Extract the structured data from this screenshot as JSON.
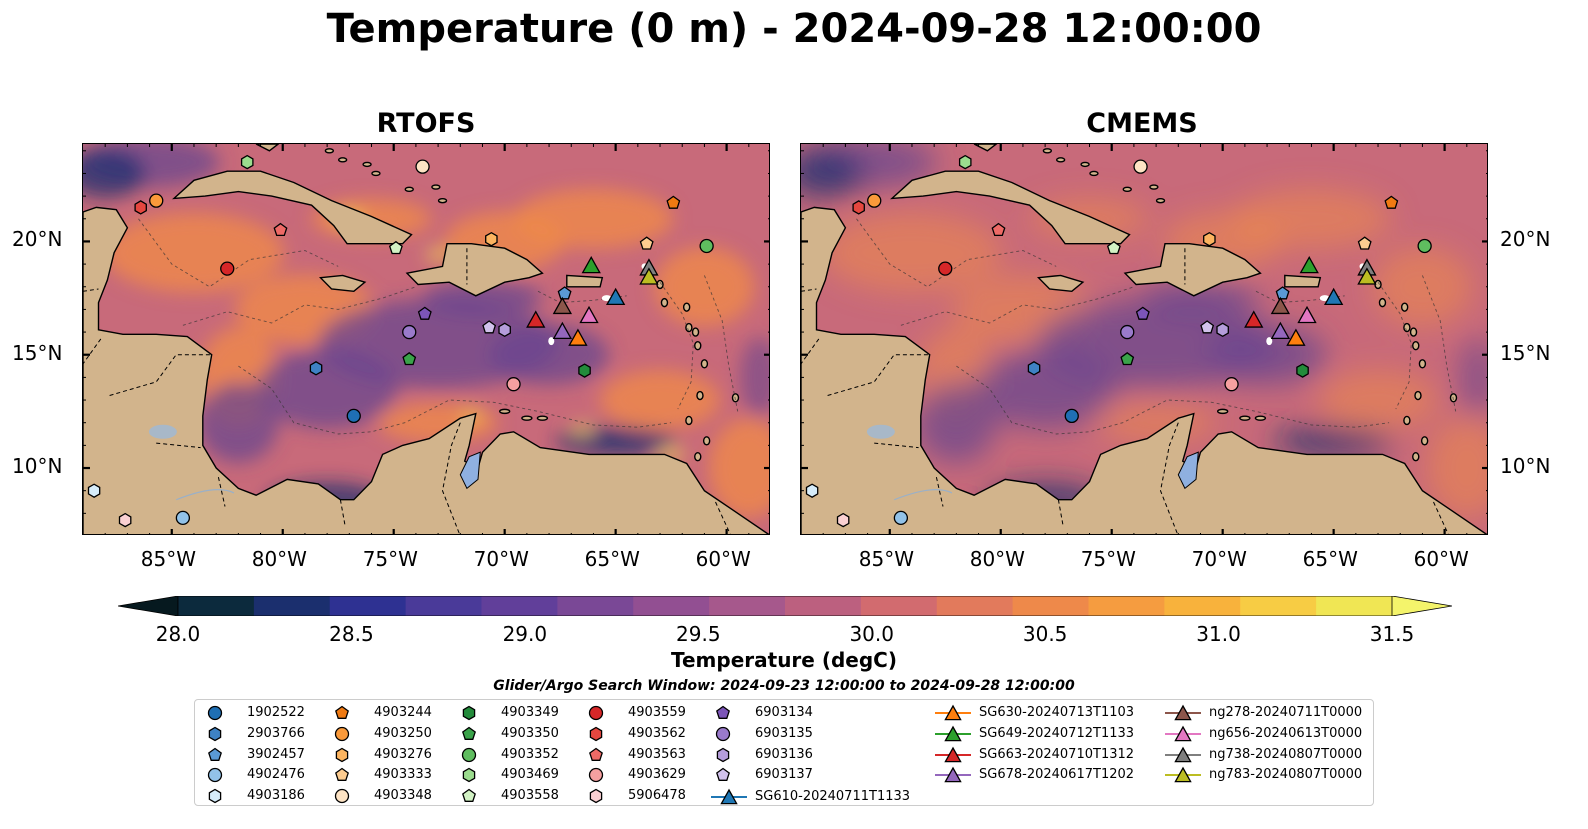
{
  "figure": {
    "title": "Temperature (0 m) - 2024-09-28 12:00:00",
    "search_window": "Glider/Argo Search Window: 2024-09-23 12:00:00 to 2024-09-28 12:00:00"
  },
  "panels": [
    {
      "title": "RTOFS"
    },
    {
      "title": "CMEMS"
    }
  ],
  "axes": {
    "x_ticks": [
      "85°W",
      "80°W",
      "75°W",
      "70°W",
      "65°W",
      "60°W"
    ],
    "y_ticks": [
      "20°N",
      "15°N",
      "10°N"
    ]
  },
  "colorbar": {
    "label": "Temperature (degC)",
    "ticks": [
      "28.0",
      "28.5",
      "29.0",
      "29.5",
      "30.0",
      "30.5",
      "31.0",
      "31.5"
    ],
    "min": 28.0,
    "max": 31.5,
    "colors": [
      "#0c2a3d",
      "#1b2f6e",
      "#2e3192",
      "#4a3a99",
      "#613f9a",
      "#7a4896",
      "#924f92",
      "#a6588c",
      "#bc607f",
      "#d26b6f",
      "#e27a5c",
      "#ee894a",
      "#f59c40",
      "#f8b23c",
      "#f7cc44",
      "#f0e654"
    ],
    "over_color": "#f4f46b",
    "under_color": "#06191f"
  },
  "map_colors": {
    "land": "#d2b48c",
    "lake": "#8fb0e0",
    "ocean_base": "#c86a7a",
    "warm": "#ef8a4a",
    "cool": "#6a468f",
    "cold": "#1b2f6e"
  },
  "legend": {
    "argo": [
      {
        "label": "1902522",
        "color": "#1f6fb4",
        "shape": "circle"
      },
      {
        "label": "2903766",
        "color": "#3e82c4",
        "shape": "hexagon"
      },
      {
        "label": "3902457",
        "color": "#5a9ad6",
        "shape": "pentagon"
      },
      {
        "label": "4902476",
        "color": "#92c2e8",
        "shape": "circle"
      },
      {
        "label": "4903186",
        "color": "#d6ecfa",
        "shape": "hexagon"
      },
      {
        "label": "4903244",
        "color": "#f07a12",
        "shape": "pentagon"
      },
      {
        "label": "4903250",
        "color": "#fb9a3a",
        "shape": "circle"
      },
      {
        "label": "4903276",
        "color": "#fcb460",
        "shape": "hexagon"
      },
      {
        "label": "4903333",
        "color": "#fdcc90",
        "shape": "pentagon"
      },
      {
        "label": "4903348",
        "color": "#fde3c4",
        "shape": "circle"
      },
      {
        "label": "4903349",
        "color": "#238b3b",
        "shape": "hexagon"
      },
      {
        "label": "4903350",
        "color": "#3aa34a",
        "shape": "pentagon"
      },
      {
        "label": "4903352",
        "color": "#5fbd5f",
        "shape": "circle"
      },
      {
        "label": "4903469",
        "color": "#9bdc8e",
        "shape": "hexagon"
      },
      {
        "label": "4903558",
        "color": "#d2f2c4",
        "shape": "pentagon"
      },
      {
        "label": "4903559",
        "color": "#d62728",
        "shape": "circle"
      },
      {
        "label": "4903562",
        "color": "#e5473f",
        "shape": "hexagon"
      },
      {
        "label": "4903563",
        "color": "#ee6a66",
        "shape": "pentagon"
      },
      {
        "label": "4903629",
        "color": "#f5a0a0",
        "shape": "circle"
      },
      {
        "label": "5906478",
        "color": "#fad0d2",
        "shape": "hexagon"
      },
      {
        "label": "6903134",
        "color": "#7c55b8",
        "shape": "pentagon"
      },
      {
        "label": "6903135",
        "color": "#9a7acb",
        "shape": "circle"
      },
      {
        "label": "6903136",
        "color": "#b59ddb",
        "shape": "hexagon"
      },
      {
        "label": "6903137",
        "color": "#d2c2ec",
        "shape": "pentagon"
      }
    ],
    "gliders": [
      {
        "label": "SG610-20240711T1133",
        "color": "#1f77b4"
      },
      {
        "label": "SG630-20240713T1103",
        "color": "#ff7f0e"
      },
      {
        "label": "SG649-20240712T1133",
        "color": "#2ca02c"
      },
      {
        "label": "SG663-20240710T1312",
        "color": "#d62728"
      },
      {
        "label": "SG678-20240617T1202",
        "color": "#9467bd"
      },
      {
        "label": "ng278-20240711T0000",
        "color": "#8c564b"
      },
      {
        "label": "ng656-20240613T0000",
        "color": "#e377c2"
      },
      {
        "label": "ng738-20240807T0000",
        "color": "#7f7f7f"
      },
      {
        "label": "ng783-20240807T0000",
        "color": "#bcbd22"
      }
    ]
  },
  "markers": {
    "argo_positions": [
      {
        "id": "1902522",
        "lon": -76.8,
        "lat": 12.3
      },
      {
        "id": "2903766",
        "lon": -78.5,
        "lat": 14.4
      },
      {
        "id": "3902457",
        "lon": -67.3,
        "lat": 17.7
      },
      {
        "id": "4902476",
        "lon": -84.5,
        "lat": 7.8
      },
      {
        "id": "4903186",
        "lon": -88.5,
        "lat": 9.0
      },
      {
        "id": "4903244",
        "lon": -62.4,
        "lat": 21.7
      },
      {
        "id": "4903250",
        "lon": -85.7,
        "lat": 21.8
      },
      {
        "id": "4903276",
        "lon": -70.6,
        "lat": 20.1
      },
      {
        "id": "4903333",
        "lon": -63.6,
        "lat": 19.9
      },
      {
        "id": "4903348",
        "lon": -73.7,
        "lat": 23.3
      },
      {
        "id": "4903349",
        "lon": -66.4,
        "lat": 14.3
      },
      {
        "id": "4903350",
        "lon": -74.3,
        "lat": 14.8
      },
      {
        "id": "4903352",
        "lon": -60.9,
        "lat": 19.8
      },
      {
        "id": "4903469",
        "lon": -81.6,
        "lat": 23.5
      },
      {
        "id": "4903558",
        "lon": -74.9,
        "lat": 19.7
      },
      {
        "id": "4903559",
        "lon": -82.5,
        "lat": 18.8
      },
      {
        "id": "4903562",
        "lon": -86.4,
        "lat": 21.5
      },
      {
        "id": "4903563",
        "lon": -80.1,
        "lat": 20.5
      },
      {
        "id": "4903629",
        "lon": -69.6,
        "lat": 13.7
      },
      {
        "id": "5906478",
        "lon": -87.1,
        "lat": 7.7
      },
      {
        "id": "6903134",
        "lon": -73.6,
        "lat": 16.8
      },
      {
        "id": "6903135",
        "lon": -74.3,
        "lat": 16.0
      },
      {
        "id": "6903136",
        "lon": -70.0,
        "lat": 16.1
      },
      {
        "id": "6903137",
        "lon": -70.7,
        "lat": 16.2
      }
    ],
    "glider_positions": [
      {
        "id": "SG610-20240711T1133",
        "lon": -65.0,
        "lat": 17.5
      },
      {
        "id": "SG630-20240713T1103",
        "lon": -66.7,
        "lat": 15.7
      },
      {
        "id": "SG649-20240712T1133",
        "lon": -66.1,
        "lat": 18.9
      },
      {
        "id": "SG663-20240710T1312",
        "lon": -68.6,
        "lat": 16.5
      },
      {
        "id": "SG678-20240617T1202",
        "lon": -67.4,
        "lat": 16.0
      },
      {
        "id": "ng278-20240711T0000",
        "lon": -67.4,
        "lat": 17.1
      },
      {
        "id": "ng656-20240613T0000",
        "lon": -66.2,
        "lat": 16.7
      },
      {
        "id": "ng738-20240807T0000",
        "lon": -63.5,
        "lat": 18.8
      },
      {
        "id": "ng783-20240807T0000",
        "lon": -63.5,
        "lat": 18.4
      }
    ]
  }
}
